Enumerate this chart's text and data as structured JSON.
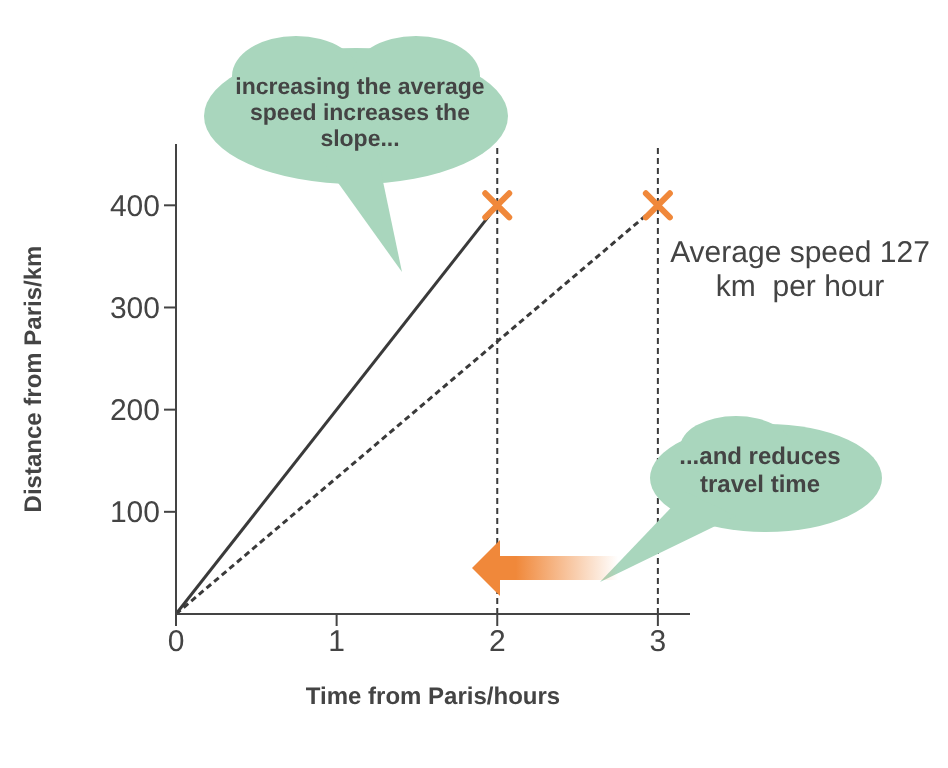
{
  "chart_data": {
    "type": "line",
    "xlabel": "Time from Paris/hours",
    "ylabel": "Distance from Paris/km",
    "xlim": [
      0,
      3.2
    ],
    "ylim": [
      0,
      460
    ],
    "xticks": [
      0,
      1,
      2,
      3
    ],
    "yticks": [
      100,
      200,
      300,
      400
    ],
    "grid": false,
    "legend": false,
    "series": [
      {
        "type": "line",
        "x": [
          0,
          2
        ],
        "values": [
          0,
          400
        ],
        "color": "#3a3a3a",
        "line_style": "solid",
        "marker": "none"
      },
      {
        "type": "line",
        "x": [
          0,
          3
        ],
        "values": [
          0,
          400
        ],
        "color": "#3a3a3a",
        "line_style": "dashed",
        "marker": "none"
      },
      {
        "type": "scatter",
        "x": [
          2,
          3
        ],
        "values": [
          400,
          400
        ],
        "color": "#f0883a",
        "marker": "cross"
      }
    ],
    "ref_lines": [
      {
        "axis": "x",
        "value": 2,
        "color": "#3a3a3a",
        "line_style": "dashed"
      },
      {
        "axis": "x",
        "value": 3,
        "color": "#3a3a3a",
        "line_style": "dashed"
      }
    ],
    "annotations": [
      "increasing the average speed increases the slope...",
      "Average speed 127 km  per hour",
      "...and reduces travel time"
    ]
  }
}
